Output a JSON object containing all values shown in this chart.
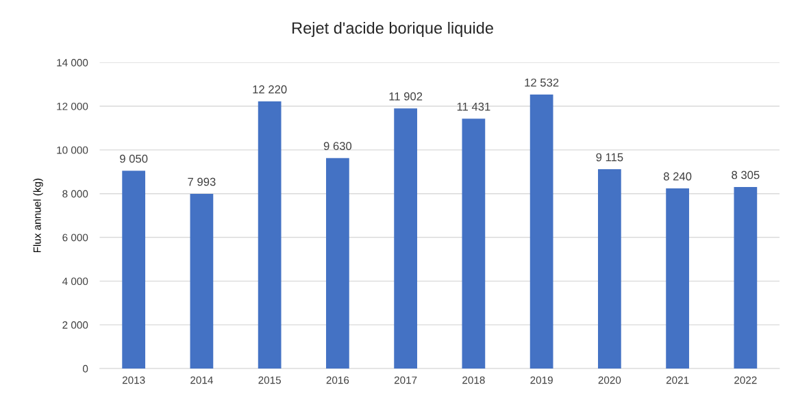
{
  "chart_data": {
    "type": "bar",
    "title": "Rejet d'acide borique liquide",
    "ylabel": "Flux annuel (kg)",
    "categories": [
      "2013",
      "2014",
      "2015",
      "2016",
      "2017",
      "2018",
      "2019",
      "2020",
      "2021",
      "2022"
    ],
    "values": [
      9050,
      7993,
      12220,
      9630,
      11902,
      11431,
      12532,
      9115,
      8240,
      8305
    ],
    "value_labels": [
      "9 050",
      "7 993",
      "12 220",
      "9 630",
      "11 902",
      "11 431",
      "12 532",
      "9 115",
      "8 240",
      "8 305"
    ],
    "color": "#4472c4",
    "ylim": [
      0,
      14000
    ],
    "yticks": [
      0,
      {
        "value": 2000,
        "label": "2 000"
      },
      {
        "value": 4000,
        "label": "4 000"
      },
      {
        "value": 6000,
        "label": "6 000"
      },
      {
        "value": 8000,
        "label": "8 000"
      },
      {
        "value": 10000,
        "label": "10 000"
      },
      {
        "value": 12000,
        "label": "12 000"
      },
      {
        "value": 14000,
        "label": "14 000"
      }
    ],
    "grid": "y"
  }
}
